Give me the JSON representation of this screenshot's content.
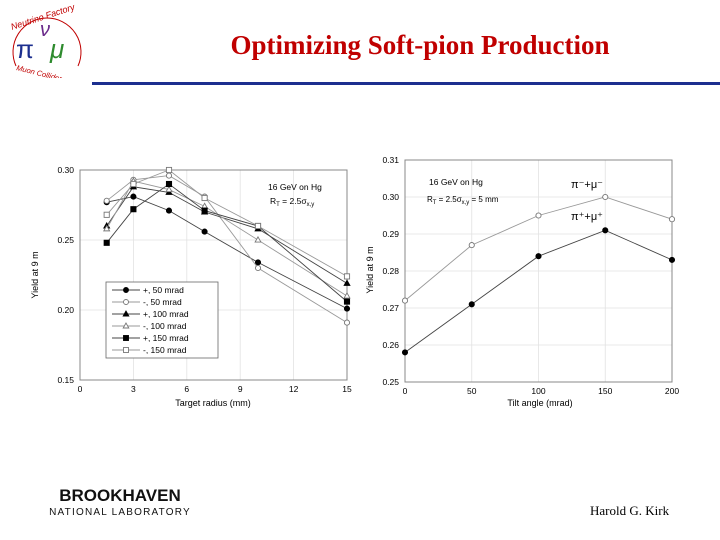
{
  "header": {
    "title": "Optimizing Soft-pion Production",
    "logo_text_top": "Neutrino Factory",
    "logo_text_bottom": "Muon Collider",
    "logo_symbol_left": "π",
    "logo_symbol_right": "μ",
    "logo_symbol_top": "ν",
    "accent_color": "#1c2f8f",
    "title_color": "#c00000"
  },
  "footer": {
    "lab_name": "BROOKHAVEN",
    "lab_sub": "NATIONAL LABORATORY",
    "author": "Harold G. Kirk"
  },
  "chart_data": [
    {
      "type": "line",
      "xlabel": "Target radius (mm)",
      "ylabel": "Yield at 9 m",
      "xlim": [
        0,
        15
      ],
      "ylim": [
        0.15,
        0.3
      ],
      "xticks": [
        0,
        3,
        6,
        9,
        12,
        15
      ],
      "yticks": [
        0.15,
        0.2,
        0.25,
        0.3
      ],
      "ytick_labels": [
        "0.15",
        "0.20",
        "0.25",
        "0.30"
      ],
      "annotation_line1": "16 GeV on Hg",
      "annotation_line2": "R",
      "annotation_line2_sub": "T",
      "annotation_line2_rest": " = 2.5σ",
      "annotation_line2_sub2": "x,y",
      "legend_position": "bottom-left",
      "series": [
        {
          "name": "+,  50 mrad",
          "marker": "circle-filled",
          "x": [
            1.5,
            3,
            5,
            7,
            10,
            15
          ],
          "y": [
            0.277,
            0.281,
            0.271,
            0.256,
            0.234,
            0.201
          ]
        },
        {
          "name": "-,  50 mrad",
          "marker": "circle-open",
          "x": [
            1.5,
            3,
            5,
            7,
            10,
            15
          ],
          "y": [
            0.278,
            0.293,
            0.296,
            0.281,
            0.23,
            0.191
          ]
        },
        {
          "name": "+, 100 mrad",
          "marker": "triangle-filled",
          "x": [
            1.5,
            3,
            5,
            7,
            10,
            15
          ],
          "y": [
            0.26,
            0.288,
            0.284,
            0.27,
            0.258,
            0.219
          ]
        },
        {
          "name": "-, 100 mrad",
          "marker": "triangle-open",
          "x": [
            1.5,
            3,
            5,
            7,
            10,
            15
          ],
          "y": [
            0.258,
            0.292,
            0.286,
            0.274,
            0.25,
            0.21
          ]
        },
        {
          "name": "+, 150 mrad",
          "marker": "square-filled",
          "x": [
            1.5,
            3,
            5,
            7,
            10,
            15
          ],
          "y": [
            0.248,
            0.272,
            0.29,
            0.271,
            0.26,
            0.206
          ]
        },
        {
          "name": "-, 150 mrad",
          "marker": "square-open",
          "x": [
            1.5,
            3,
            5,
            7,
            10,
            15
          ],
          "y": [
            0.268,
            0.29,
            0.3,
            0.28,
            0.26,
            0.224
          ]
        }
      ]
    },
    {
      "type": "line",
      "xlabel": "Tilt angle (mrad)",
      "ylabel": "Yield at 9 m",
      "xlim": [
        0,
        200
      ],
      "ylim": [
        0.25,
        0.31
      ],
      "xticks": [
        0,
        50,
        100,
        150,
        200
      ],
      "yticks": [
        0.25,
        0.26,
        0.27,
        0.28,
        0.29,
        0.3,
        0.31
      ],
      "ytick_labels": [
        "0.25",
        "0.26",
        "0.27",
        "0.28",
        "0.29",
        "0.30",
        "0.31"
      ],
      "annotation_line1": "16 GeV on Hg",
      "annotation_line2": "R",
      "annotation_line2_sub": "T",
      "annotation_line2_rest": " = 2.5σ",
      "annotation_line2_sub2": "x,y",
      "annotation_line2_tail": " = 5 mm",
      "series": [
        {
          "name": "π⁻+μ⁻",
          "marker": "circle-open",
          "x": [
            0,
            50,
            100,
            150,
            200
          ],
          "y": [
            0.272,
            0.287,
            0.295,
            0.3,
            0.294
          ]
        },
        {
          "name": "π⁺+μ⁺",
          "marker": "circle-filled",
          "x": [
            0,
            50,
            100,
            150,
            200
          ],
          "y": [
            0.258,
            0.271,
            0.284,
            0.291,
            0.283
          ]
        }
      ]
    }
  ]
}
